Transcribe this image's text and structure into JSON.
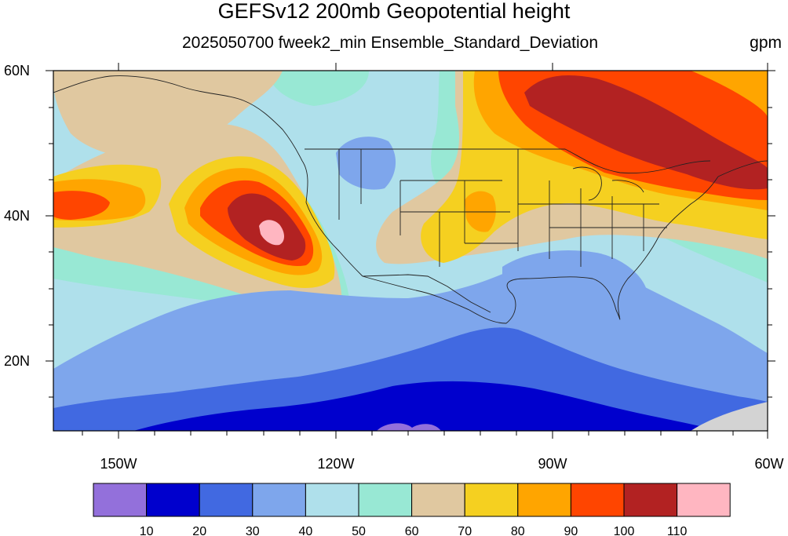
{
  "title": "GEFSv12 200mb Geopotential height",
  "subtitle": "2025050700 fweek2_min Ensemble_Standard_Deviation",
  "units": "gpm",
  "lat_labels": [
    "60N",
    "40N",
    "20N"
  ],
  "lon_labels": [
    "150W",
    "120W",
    "90W",
    "60W"
  ],
  "colorbar": {
    "colors": [
      "#9370db",
      "#0000cd",
      "#4169e1",
      "#7ea6ec",
      "#afe0eb",
      "#98e8d4",
      "#e0c8a0",
      "#f5d020",
      "#ffa500",
      "#ff4500",
      "#b22222",
      "#ffb6c1"
    ],
    "labels": [
      "10",
      "20",
      "30",
      "40",
      "50",
      "60",
      "70",
      "80",
      "90",
      "100",
      "110"
    ]
  }
}
